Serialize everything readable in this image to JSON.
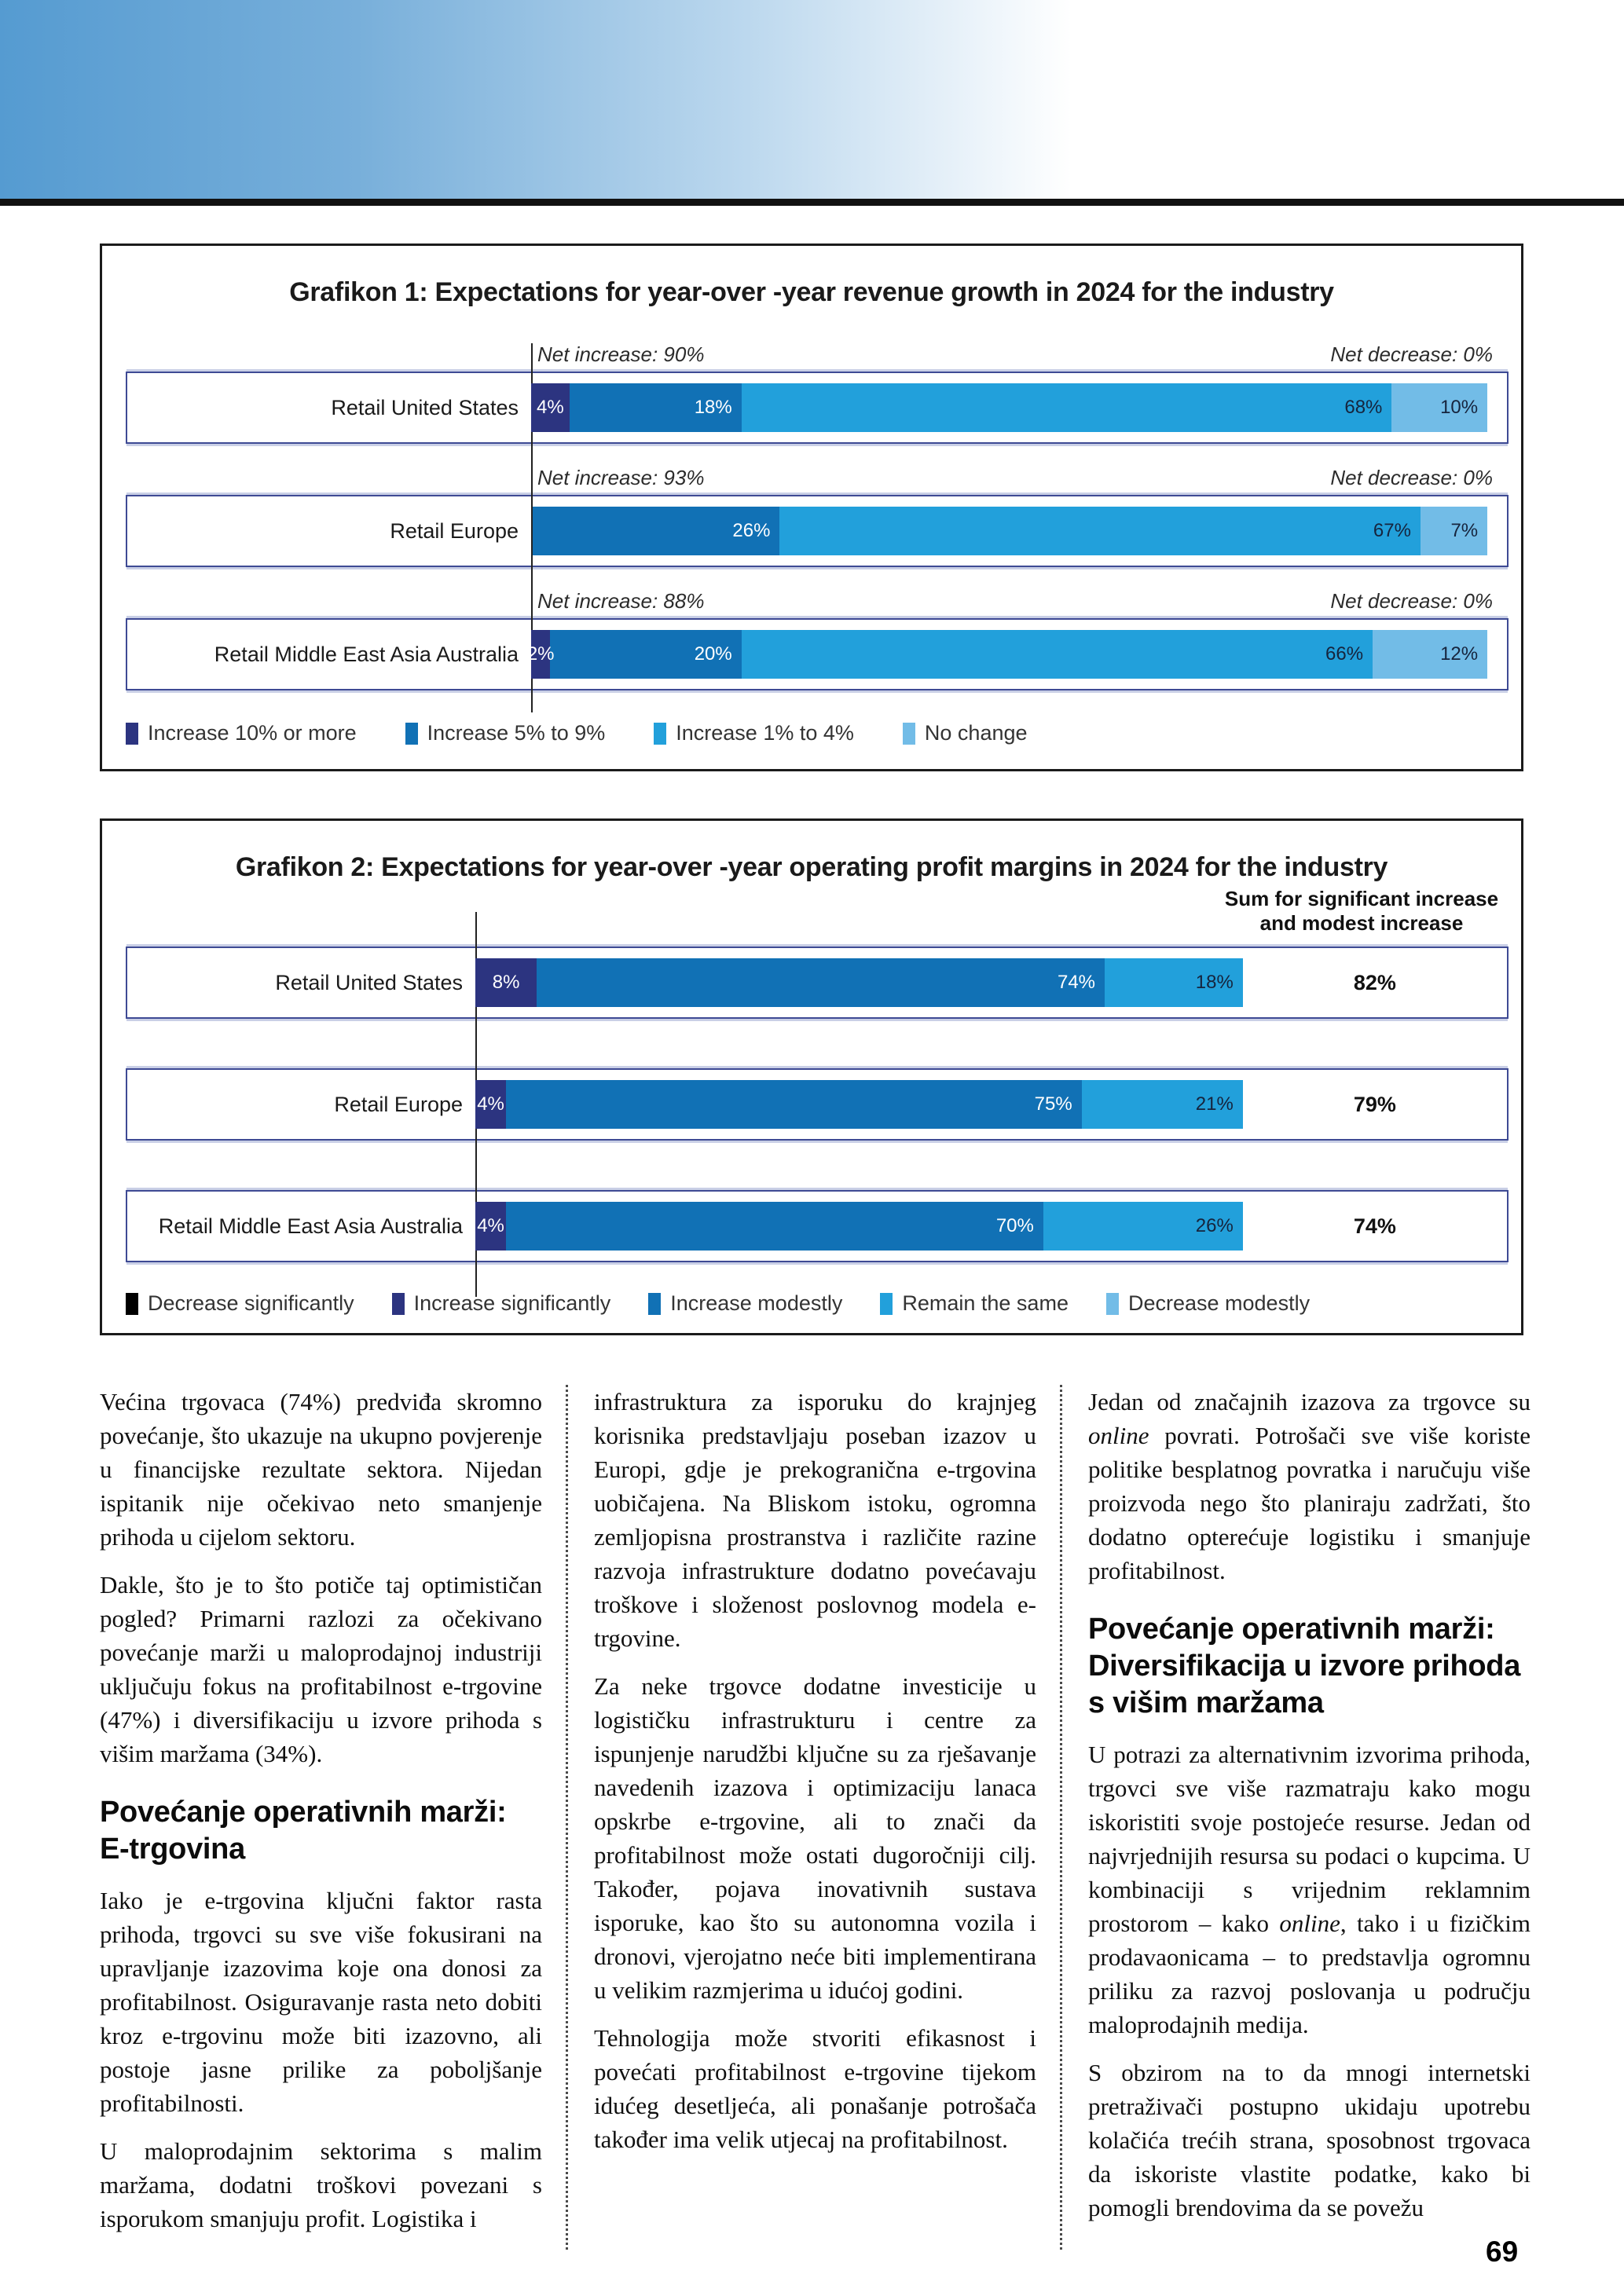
{
  "page": {
    "number": "69"
  },
  "chart_data": [
    {
      "type": "stacked-bar-horizontal",
      "title": "Grafikon 1: Expectations for year-over -year revenue growth in 2024 for the industry",
      "categories": [
        "Retail United States",
        "Retail Europe",
        "Retail Middle East Asia Australia"
      ],
      "bar_area_fill_pct": 98,
      "legend": [
        {
          "label": "Increase 10% or more",
          "color": "#2c3480"
        },
        {
          "label": "Increase 5% to 9%",
          "color": "#1171b5"
        },
        {
          "label": "Increase 1% to 4%",
          "color": "#22a0db"
        },
        {
          "label": "No change",
          "color": "#72bce7"
        }
      ],
      "rows": [
        {
          "label": "Retail United States",
          "net_increase": "Net increase: 90%",
          "net_decrease": "Net decrease: 0%",
          "segments": [
            {
              "value": 4,
              "label": "4%",
              "color": "#2c3480",
              "text_color": "#ffffff",
              "align": "center"
            },
            {
              "value": 18,
              "label": "18%",
              "color": "#1171b5",
              "text_color": "#ffffff",
              "align": "right"
            },
            {
              "value": 68,
              "label": "68%",
              "color": "#22a0db",
              "text_color": "#16243d",
              "align": "right"
            },
            {
              "value": 10,
              "label": "10%",
              "color": "#72bce7",
              "text_color": "#16243d",
              "align": "right"
            }
          ]
        },
        {
          "label": "Retail Europe",
          "net_increase": "Net increase: 93%",
          "net_decrease": "Net decrease: 0%",
          "segments": [
            {
              "value": 26,
              "label": "26%",
              "color": "#1171b5",
              "text_color": "#ffffff",
              "align": "right"
            },
            {
              "value": 67,
              "label": "67%",
              "color": "#22a0db",
              "text_color": "#16243d",
              "align": "right"
            },
            {
              "value": 7,
              "label": "7%",
              "color": "#72bce7",
              "text_color": "#16243d",
              "align": "right"
            }
          ]
        },
        {
          "label": "Retail Middle East Asia Australia",
          "net_increase": "Net increase: 88%",
          "net_decrease": "Net decrease: 0%",
          "segments": [
            {
              "value": 2,
              "label": "2%",
              "color": "#2c3480",
              "text_color": "#ffffff",
              "align": "center"
            },
            {
              "value": 20,
              "label": "20%",
              "color": "#1171b5",
              "text_color": "#ffffff",
              "align": "right"
            },
            {
              "value": 66,
              "label": "66%",
              "color": "#22a0db",
              "text_color": "#16243d",
              "align": "right"
            },
            {
              "value": 12,
              "label": "12%",
              "color": "#72bce7",
              "text_color": "#16243d",
              "align": "right"
            }
          ]
        }
      ]
    },
    {
      "type": "stacked-bar-horizontal",
      "title": "Grafikon 2: Expectations for year-over -year operating profit margins in 2024 for the industry",
      "sum_header": "Sum for significant increase\nand modest increase",
      "categories": [
        "Retail United States",
        "Retail Europe",
        "Retail Middle East Asia Australia"
      ],
      "bar_area_fill_pct": 74.4,
      "legend": [
        {
          "label": "Decrease significantly",
          "color": "#000000"
        },
        {
          "label": "Increase significantly",
          "color": "#2c3480"
        },
        {
          "label": "Increase modestly",
          "color": "#1171b5"
        },
        {
          "label": "Remain the same",
          "color": "#22a0db"
        },
        {
          "label": "Decrease modestly",
          "color": "#72bce7"
        }
      ],
      "rows": [
        {
          "label": "Retail United States",
          "sum": "82%",
          "segments": [
            {
              "value": 8,
              "label": "8%",
              "color": "#2c3480",
              "text_color": "#ffffff",
              "align": "center"
            },
            {
              "value": 74,
              "label": "74%",
              "color": "#1171b5",
              "text_color": "#ffffff",
              "align": "right"
            },
            {
              "value": 18,
              "label": "18%",
              "color": "#22a0db",
              "text_color": "#16243d",
              "align": "right"
            }
          ]
        },
        {
          "label": "Retail Europe",
          "sum": "79%",
          "segments": [
            {
              "value": 4,
              "label": "4%",
              "color": "#2c3480",
              "text_color": "#ffffff",
              "align": "center"
            },
            {
              "value": 75,
              "label": "75%",
              "color": "#1171b5",
              "text_color": "#ffffff",
              "align": "right"
            },
            {
              "value": 21,
              "label": "21%",
              "color": "#22a0db",
              "text_color": "#16243d",
              "align": "right"
            }
          ]
        },
        {
          "label": "Retail Middle East Asia Australia",
          "sum": "74%",
          "segments": [
            {
              "value": 4,
              "label": "4%",
              "color": "#2c3480",
              "text_color": "#ffffff",
              "align": "center"
            },
            {
              "value": 70,
              "label": "70%",
              "color": "#1171b5",
              "text_color": "#ffffff",
              "align": "right"
            },
            {
              "value": 26,
              "label": "26%",
              "color": "#22a0db",
              "text_color": "#16243d",
              "align": "right"
            }
          ]
        }
      ]
    }
  ],
  "article": {
    "columns": [
      {
        "blocks": [
          {
            "type": "p",
            "runs": [
              {
                "t": "Većina trgovaca (74%) predviđa skromno povećanje, što ukazuje na ukupno povjerenje u financijske rezultate sektora. Nijedan ispitanik nije očekivao neto smanjenje prihoda u cijelom sektoru."
              }
            ]
          },
          {
            "type": "p",
            "runs": [
              {
                "t": "Dakle, što je to što potiče taj optimističan pogled? Primarni razlozi za očekivano povećanje marži u maloprodajnoj industriji uključuju fokus na profitabilnost e-trgovine (47%) i diversifikaciju u izvore prihoda s višim maržama (34%)."
              }
            ]
          },
          {
            "type": "h",
            "text": "Povećanje operativnih marži:\nE-trgovina"
          },
          {
            "type": "p",
            "runs": [
              {
                "t": "Iako je e-trgovina ključni faktor rasta prihoda, trgovci su sve više fokusirani na upravljanje izazovima koje ona donosi za profitabilnost. Osiguravanje rasta neto dobiti kroz e-trgovinu može biti izazovno, ali postoje jasne prilike za poboljšanje profitabilnosti."
              }
            ]
          },
          {
            "type": "p",
            "runs": [
              {
                "t": "U maloprodajnim sektorima s malim maržama, dodatni troškovi povezani s isporukom smanjuju profit. Logistika i"
              }
            ]
          }
        ]
      },
      {
        "blocks": [
          {
            "type": "p",
            "runs": [
              {
                "t": "infrastruktura za isporuku do krajnjeg korisnika predstavljaju poseban izazov u Europi, gdje je prekogranična e-trgovina uobičajena. Na Bliskom istoku, ogromna zemljopisna prostranstva i različite razine razvoja infrastrukture dodatno povećavaju troškove i složenost poslovnog modela e-trgovine."
              }
            ]
          },
          {
            "type": "p",
            "runs": [
              {
                "t": "Za neke trgovce dodatne investicije u logističku infrastrukturu i centre za ispunjenje narudžbi ključne su za rješavanje navedenih izazova i optimizaciju lanaca opskrbe e-trgovine, ali to znači da profitabilnost može ostati dugoročniji cilj. Također, pojava inovativnih sustava isporuke, kao što su autonomna vozila i dronovi, vjerojatno neće biti implementirana u velikim razmjerima u idućoj godini."
              }
            ]
          },
          {
            "type": "p",
            "runs": [
              {
                "t": "Tehnologija može stvoriti efikasnost i povećati profitabilnost e-trgovine tijekom idućeg desetljeća, ali ponašanje potrošača također ima velik utjecaj na profitabilnost."
              }
            ]
          }
        ]
      },
      {
        "blocks": [
          {
            "type": "p",
            "runs": [
              {
                "t": "Jedan od značajnih izazova za trgovce su "
              },
              {
                "t": "online",
                "i": true
              },
              {
                "t": " povrati. Potrošači sve više koriste politike besplatnog povratka i naručuju više proizvoda nego što planiraju zadržati, što dodatno opterećuje logistiku i smanjuje profitabilnost."
              }
            ]
          },
          {
            "type": "h",
            "text": "Povećanje operativnih marži:\nDiversifikacija u izvore prihoda\ns višim maržama"
          },
          {
            "type": "p",
            "runs": [
              {
                "t": "U potrazi za alternativnim izvorima prihoda, trgovci sve više razmatraju kako mogu iskoristiti svoje postojeće resurse. Jedan od najvrjednijih resursa su podaci o kupcima. U kombinaciji s vrijednim reklamnim prostorom – kako "
              },
              {
                "t": "online",
                "i": true
              },
              {
                "t": ", tako i u fizičkim prodavaonicama – to predstavlja ogromnu priliku za razvoj poslovanja u području maloprodajnih medija."
              }
            ]
          },
          {
            "type": "p",
            "runs": [
              {
                "t": "S obzirom na to da mnogi internetski pretraživači postupno ukidaju upotrebu kolačića trećih strana, sposobnost trgovaca da iskoriste vlastite podatke, kako bi pomogli brendovima da se povežu"
              }
            ]
          }
        ]
      }
    ]
  }
}
